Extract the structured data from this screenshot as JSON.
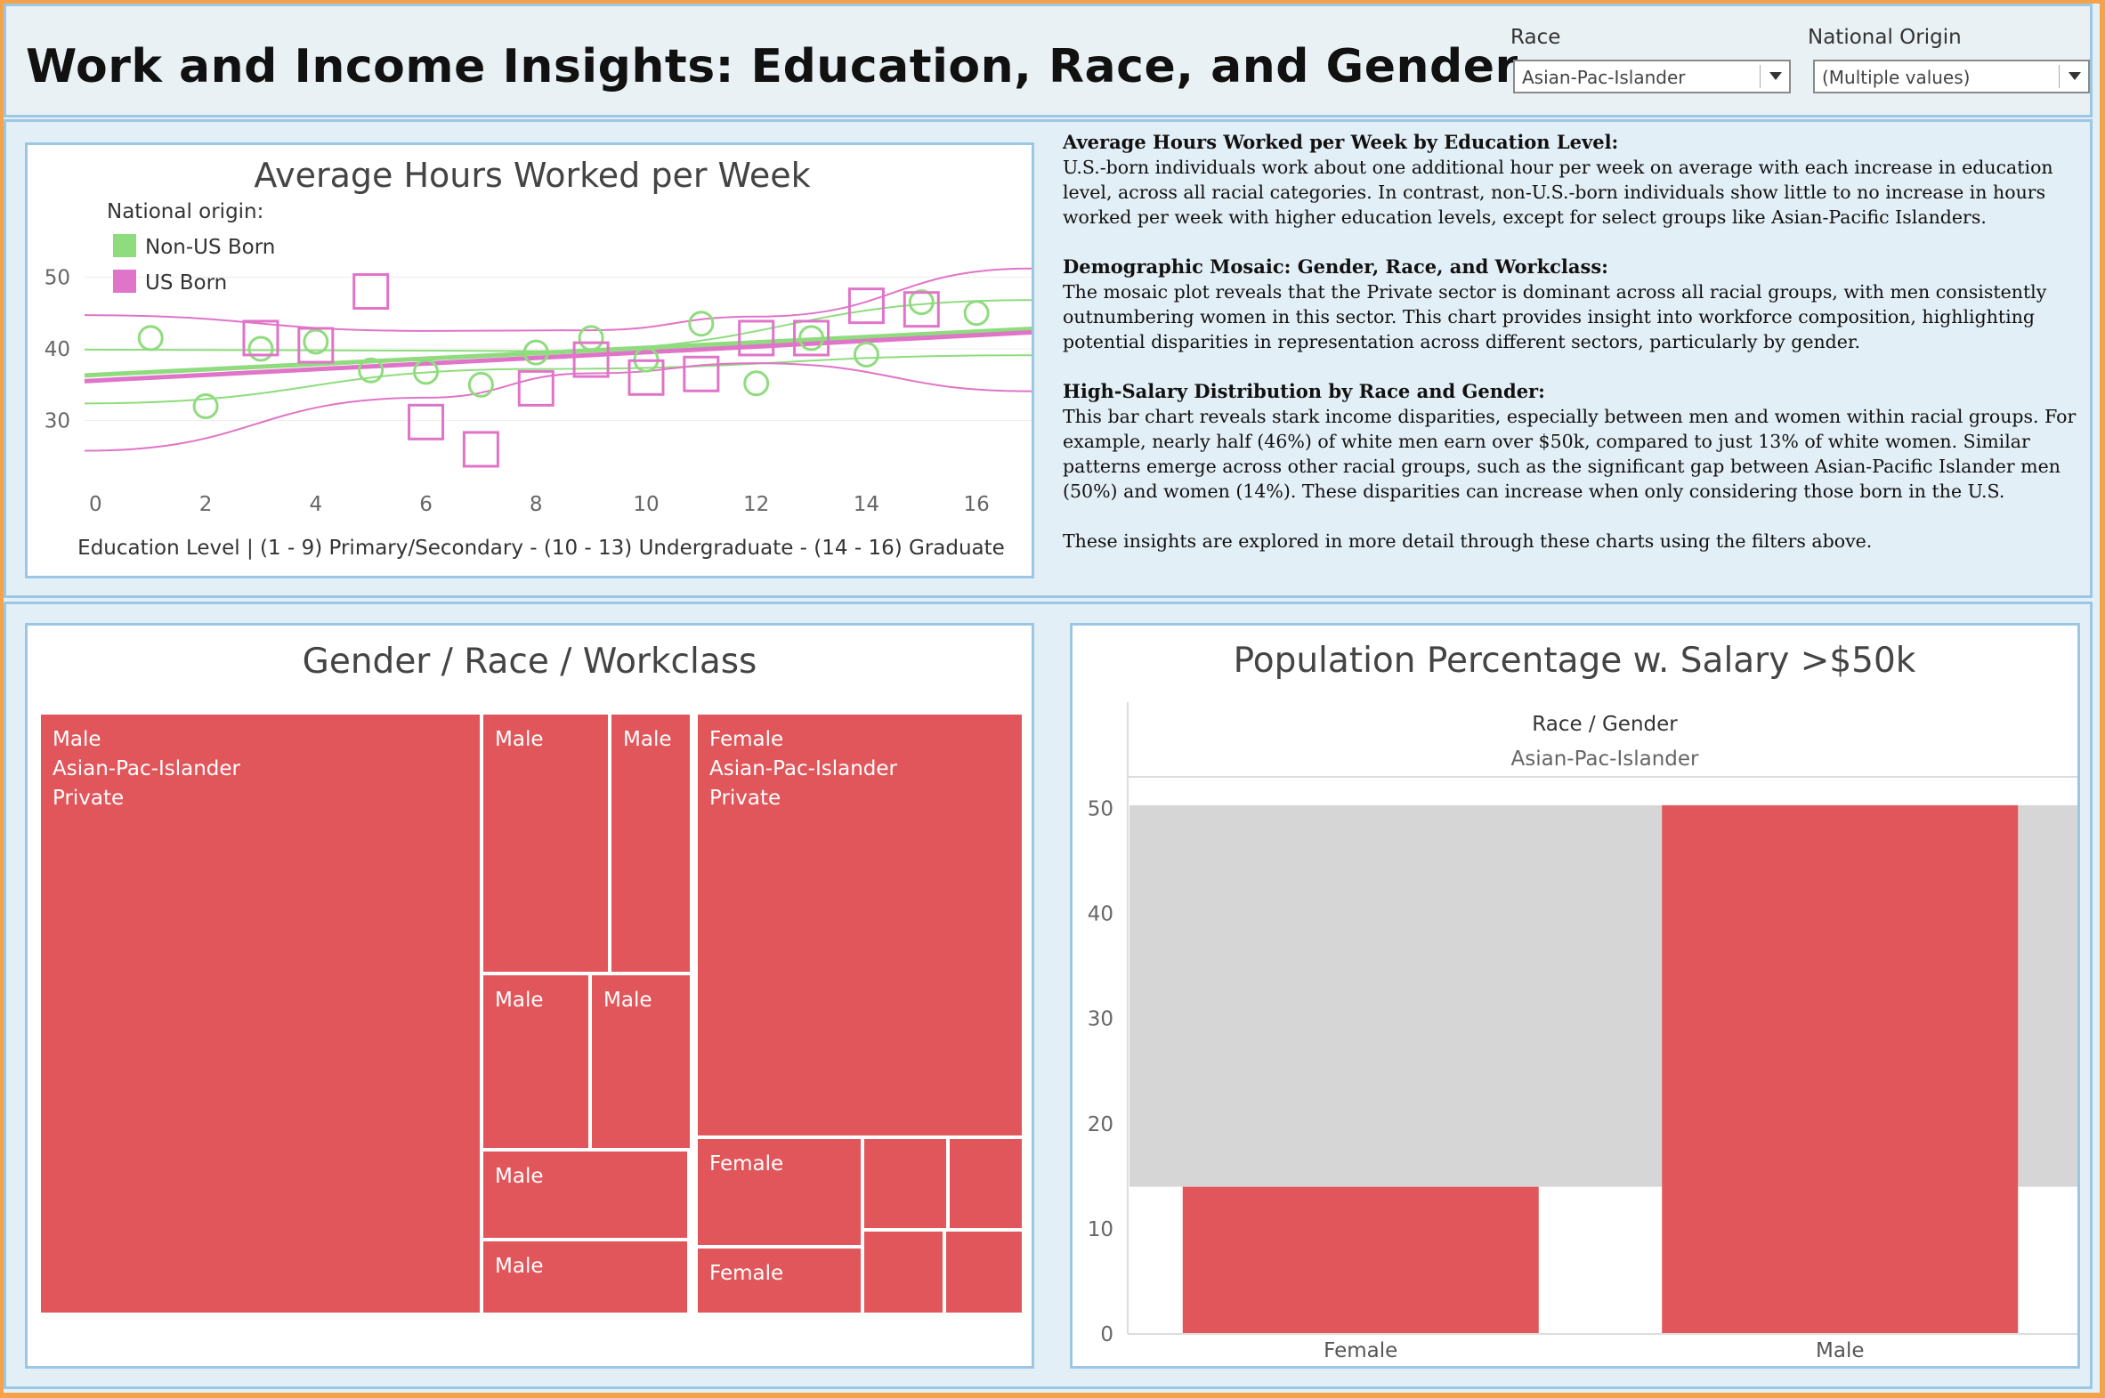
{
  "header": {
    "title": "Work and Income Insights: Education, Race, and Gender",
    "filters": [
      {
        "label": "Race",
        "value": "Asian-Pac-Islander"
      },
      {
        "label": "National Origin",
        "value": "(Multiple values)"
      }
    ]
  },
  "insights": [
    {
      "heading": "Average Hours Worked per Week by Education Level:",
      "body": "U.S.-born individuals work about one additional hour per week on average with each increase in education level, across all racial categories. In contrast, non-U.S.-born individuals show little to no increase in hours worked per week with higher education levels, except for select groups like Asian-Pacific Islanders."
    },
    {
      "heading": "Demographic Mosaic: Gender, Race, and Workclass:",
      "body": "The mosaic plot reveals that the Private sector is dominant across all racial groups, with men consistently outnumbering women in this sector. This chart provides insight into workforce composition, highlighting potential disparities in representation across different sectors, particularly by gender."
    },
    {
      "heading": "High-Salary Distribution by Race and Gender:",
      "body": "This bar chart reveals stark income disparities, especially between men and women within racial groups. For example, nearly half (46%) of white men earn over $50k, compared to just 13% of white women. Similar patterns emerge across other racial groups, such as the significant gap between Asian-Pacific Islander men (50%) and women (14%). These disparities can increase when only considering those born in the U.S."
    },
    {
      "heading": "",
      "body": "These insights are explored in more detail through these charts using the filters above."
    }
  ],
  "chart_data": [
    {
      "type": "scatter",
      "title": "Average Hours Worked per Week",
      "xlabel": "Education Level | (1 - 9) Primary/Secondary - (10 - 13) Undergraduate - (14 - 16) Graduate",
      "ylabel": "",
      "xlim": [
        -0.2,
        17
      ],
      "ylim": [
        25,
        56
      ],
      "xticks": [
        0,
        2,
        4,
        6,
        8,
        10,
        12,
        14,
        16
      ],
      "yticks": [
        30,
        40,
        50
      ],
      "legend_title": "National origin:",
      "legend_position": "top-left",
      "colors": {
        "non_us": "#8fdc7e",
        "us": "#e074c8"
      },
      "series": [
        {
          "name": "Non-US Born",
          "marker": "circle",
          "color": "#8fdc7e",
          "points": [
            [
              1,
              41.5
            ],
            [
              2,
              32
            ],
            [
              3,
              40
            ],
            [
              4,
              41
            ],
            [
              5,
              37
            ],
            [
              6,
              36.8
            ],
            [
              7,
              35
            ],
            [
              8,
              39.5
            ],
            [
              9,
              41.5
            ],
            [
              10,
              38.5
            ],
            [
              11,
              43.5
            ],
            [
              12,
              35.2
            ],
            [
              13,
              41.5
            ],
            [
              14,
              39.2
            ],
            [
              15,
              46.5
            ],
            [
              16,
              45
            ]
          ],
          "trend": {
            "start": [
              -0.2,
              36.3
            ],
            "end": [
              17,
              42.8
            ],
            "band_upper": [
              [
                -0.2,
                39.9
              ],
              [
                8,
                39.7
              ],
              [
                17,
                46.8
              ]
            ],
            "band_lower": [
              [
                -0.2,
                32.4
              ],
              [
                8,
                37.2
              ],
              [
                17,
                39.1
              ]
            ]
          }
        },
        {
          "name": "US Born",
          "marker": "square",
          "color": "#e074c8",
          "points": [
            [
              3,
              41.5
            ],
            [
              4,
              40.5
            ],
            [
              5,
              48
            ],
            [
              6,
              29.8
            ],
            [
              7,
              26
            ],
            [
              8,
              34.5
            ],
            [
              9,
              38.5
            ],
            [
              10,
              36
            ],
            [
              11,
              36.5
            ],
            [
              12,
              41.5
            ],
            [
              13,
              41.5
            ],
            [
              14,
              46
            ],
            [
              15,
              45.5
            ]
          ],
          "trend": {
            "start": [
              -0.2,
              35.5
            ],
            "end": [
              17,
              42.3
            ],
            "band_upper": [
              [
                -0.2,
                44.7
              ],
              [
                6,
                42.5
              ],
              [
                9,
                42.6
              ],
              [
                12,
                44.5
              ],
              [
                17,
                51.2
              ]
            ],
            "band_lower": [
              [
                -0.2,
                25.8
              ],
              [
                6,
                33.2
              ],
              [
                9,
                36.6
              ],
              [
                12,
                38
              ],
              [
                17,
                34.1
              ]
            ]
          }
        }
      ]
    },
    {
      "type": "treemap",
      "title": "Gender / Race / Workclass",
      "color": "#e1565a",
      "cells": [
        {
          "labels": [
            "Male",
            "Asian-Pac-Islander",
            "Private"
          ]
        },
        {
          "labels": [
            "Male"
          ]
        },
        {
          "labels": [
            "Male"
          ]
        },
        {
          "labels": [
            "Male"
          ]
        },
        {
          "labels": [
            "Male"
          ]
        },
        {
          "labels": [
            "Male"
          ]
        },
        {
          "labels": [
            "Male"
          ]
        },
        {
          "labels": [
            "Female",
            "Asian-Pac-Islander",
            "Private"
          ]
        },
        {
          "labels": [
            "Female"
          ]
        },
        {
          "labels": [
            "Female"
          ]
        },
        {
          "labels": []
        },
        {
          "labels": []
        },
        {
          "labels": []
        },
        {
          "labels": []
        }
      ]
    },
    {
      "type": "bar",
      "title": "Population Percentage w. Salary >$50k",
      "header_label": "Race / Gender",
      "group": "Asian-Pac-Islander",
      "categories": [
        "Female",
        "Male"
      ],
      "values": [
        14,
        50.3
      ],
      "ylim": [
        0,
        53
      ],
      "yticks": [
        0,
        10,
        20,
        30,
        40,
        50
      ],
      "band_range": [
        14,
        50.3
      ],
      "bar_color": "#e1565a",
      "band_color": "#d6d6d6"
    }
  ]
}
